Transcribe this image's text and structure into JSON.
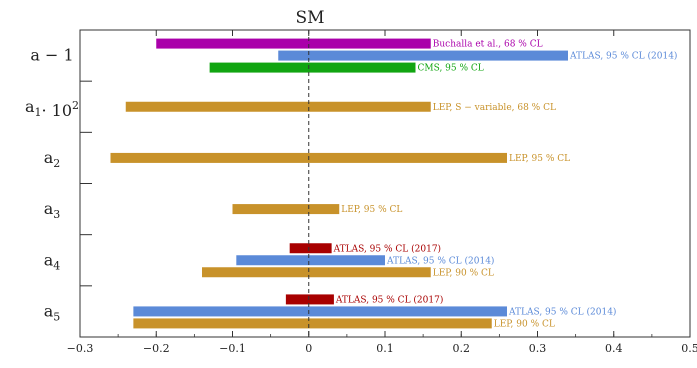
{
  "chart_data": {
    "type": "bar",
    "orientation": "horizontal",
    "title": "SM",
    "xlabel": "",
    "ylabel": "",
    "xlim": [
      -0.3,
      0.5
    ],
    "x_ticks": [
      -0.3,
      -0.2,
      -0.1,
      0,
      0.1,
      0.2,
      0.3,
      0.4,
      0.5
    ],
    "x_tick_labels": [
      "−0.3",
      "−0.2",
      "−0.1",
      "0",
      "0.1",
      "0.2",
      "0.3",
      "0.4",
      "0.5"
    ],
    "reference_line": 0,
    "colors": {
      "purple": "#aa00aa",
      "blue": "#5b8ad8",
      "green": "#11a511",
      "gold": "#c8922a",
      "red": "#a80000"
    },
    "groups": [
      {
        "label_main": "a",
        "label_tail": " − 1",
        "intervals": [
          {
            "name": "Buchalla et al., 68 % CL",
            "lo": -0.2,
            "hi": 0.16,
            "color": "#aa00aa"
          },
          {
            "name": "ATLAS, 95 % CL (2014)",
            "lo": -0.04,
            "hi": 0.34,
            "color": "#5b8ad8"
          },
          {
            "name": "CMS, 95 % CL",
            "lo": -0.13,
            "hi": 0.14,
            "color": "#11a511"
          }
        ]
      },
      {
        "label_main": "a",
        "label_sub": "1",
        "label_tail": "· 10",
        "label_sup": "2",
        "intervals": [
          {
            "name": "LEP, S − variable, 68 % CL",
            "lo": -0.24,
            "hi": 0.16,
            "color": "#c8922a"
          }
        ]
      },
      {
        "label_main": "a",
        "label_sub": "2",
        "intervals": [
          {
            "name": "LEP, 95 % CL",
            "lo": -0.26,
            "hi": 0.26,
            "color": "#c8922a"
          }
        ]
      },
      {
        "label_main": "a",
        "label_sub": "3",
        "intervals": [
          {
            "name": "LEP, 95 % CL",
            "lo": -0.1,
            "hi": 0.04,
            "color": "#c8922a"
          }
        ]
      },
      {
        "label_main": "a",
        "label_sub": "4",
        "intervals": [
          {
            "name": "ATLAS, 95 % CL (2017)",
            "lo": -0.025,
            "hi": 0.03,
            "color": "#a80000"
          },
          {
            "name": "ATLAS, 95 % CL (2014)",
            "lo": -0.095,
            "hi": 0.1,
            "color": "#5b8ad8"
          },
          {
            "name": "LEP, 90 % CL",
            "lo": -0.14,
            "hi": 0.16,
            "color": "#c8922a"
          }
        ]
      },
      {
        "label_main": "a",
        "label_sub": "5",
        "intervals": [
          {
            "name": "ATLAS, 95 % CL (2017)",
            "lo": -0.03,
            "hi": 0.033,
            "color": "#a80000"
          },
          {
            "name": "ATLAS, 95 % CL (2014)",
            "lo": -0.23,
            "hi": 0.26,
            "color": "#5b8ad8"
          },
          {
            "name": "LEP, 90 % CL",
            "lo": -0.23,
            "hi": 0.24,
            "color": "#c8922a"
          }
        ]
      }
    ]
  }
}
